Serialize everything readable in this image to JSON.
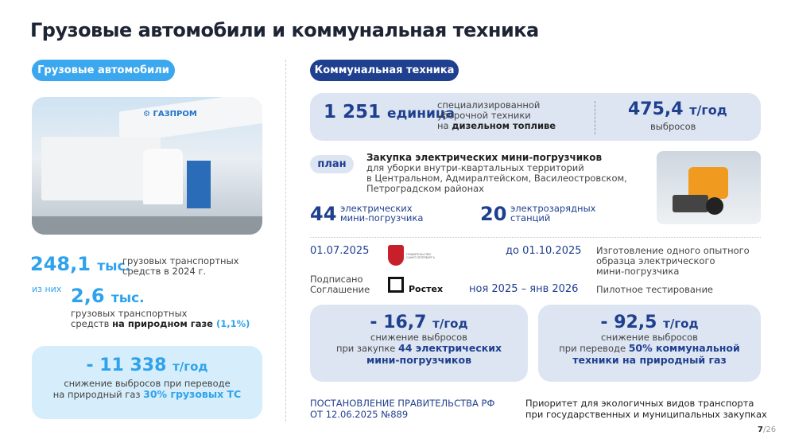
{
  "title": "Грузовые автомобили и коммунальная техника",
  "left": {
    "pill": "Грузовые автомобили",
    "photo_brand": "ГАЗПРОМ",
    "total_value": "248,1",
    "total_unit": "тыс.",
    "total_desc_1": "грузовых транспортных",
    "total_desc_2": "средств в 2024 г.",
    "of_them": "из них",
    "gas_value": "2,6",
    "gas_unit": "тыс.",
    "gas_desc_1": "грузовых транспортных",
    "gas_desc_2a": "средств ",
    "gas_desc_2b": "на природном газе",
    "gas_desc_2c": " (1,1%)",
    "reduction_value": "- 11 338",
    "reduction_unit": "т/год",
    "reduction_desc_1": "снижение выбросов при переводе",
    "reduction_desc_2a": "на природный газ ",
    "reduction_desc_2b": "30% грузовых ТС"
  },
  "right": {
    "pill": "Коммунальная техника",
    "units_value": "1 251",
    "units_unit": "единица",
    "units_desc_1": "специализированной",
    "units_desc_2": "уборочной техники",
    "units_desc_3a": "на ",
    "units_desc_3b": "дизельном топливе",
    "emissions_value": "475,4",
    "emissions_unit": "т/год",
    "emissions_desc": "выбросов",
    "plan_pill": "план",
    "plan_title": "Закупка электрических мини-погрузчиков",
    "plan_desc": [
      "для уборки внутри-квартальных территорий",
      "в Центральном, Адмиралтейском, Василеостровском,",
      "Петроградском районах"
    ],
    "loaders_value": "44",
    "loaders_desc_1": "электрических",
    "loaders_desc_2": "мини-погрузчика",
    "stations_value": "20",
    "stations_desc_1": "электрозарядных",
    "stations_desc_2": "станций",
    "date_signed": "01.07.2025",
    "signed_label_1": "Подписано",
    "signed_label_2": "Соглашение",
    "gov_logo_text": "ПРАВИТЕЛЬСТВО САНКТ-ПЕТЕРБУРГА",
    "rostec_label": "Ростех",
    "deadline_1": "до 01.10.2025",
    "milestone_1": [
      "Изготовление одного опытного",
      "образца электрического",
      "мини-погрузчика"
    ],
    "deadline_2": "ноя 2025 – янв 2026",
    "milestone_2": "Пилотное тестирование",
    "box1_value": "- 16,7",
    "box1_unit": "т/год",
    "box1_desc_1": "снижение выбросов",
    "box1_desc_2a": "при закупке ",
    "box1_desc_2b": "44 электрических",
    "box1_desc_3": "мини-погрузчиков",
    "box2_value": "- 92,5",
    "box2_unit": "т/год",
    "box2_desc_1": "снижение выбросов",
    "box2_desc_2a": "при переводе ",
    "box2_desc_2b": "50% коммунальной",
    "box2_desc_3": "техники на природный газ",
    "decree_1": "ПОСТАНОВЛЕНИЕ ПРАВИТЕЛЬСТВА РФ",
    "decree_2": "ОТ 12.06.2025 №889",
    "priority_1": "Приоритет для экологичных видов транспорта",
    "priority_2": "при государственных и муниципальных закупках"
  },
  "page": {
    "current": "7",
    "total": "/26"
  },
  "colors": {
    "light_blue": "#2ea3ec",
    "navy": "#1f3f8f",
    "box_light_blue": "#d6edfb",
    "box_navy_light": "#dde5f2"
  }
}
